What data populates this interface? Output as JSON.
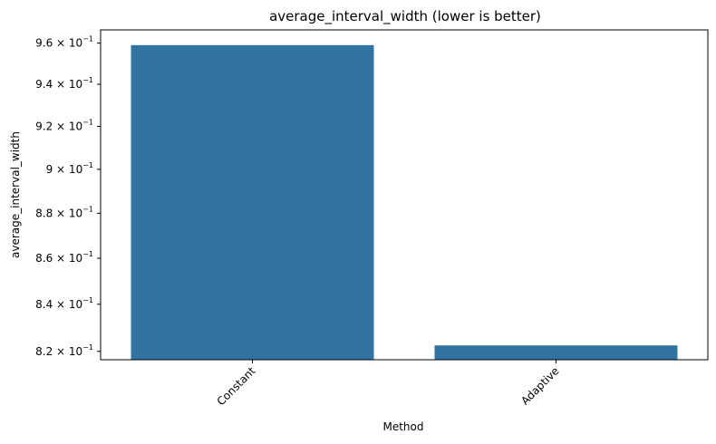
{
  "chart_data": {
    "type": "bar",
    "title": "average_interval_width (lower is better)",
    "xlabel": "Method",
    "ylabel": "average_interval_width",
    "categories": [
      "Constant",
      "Adaptive"
    ],
    "values": [
      0.959,
      0.8225
    ],
    "y_scale": "log",
    "ylim": [
      0.8165,
      0.9665
    ],
    "yticks": [
      {
        "value": 0.82,
        "mantissa": "8.2",
        "base": "10",
        "exponent": "−1"
      },
      {
        "value": 0.84,
        "mantissa": "8.4",
        "base": "10",
        "exponent": "−1"
      },
      {
        "value": 0.86,
        "mantissa": "8.6",
        "base": "10",
        "exponent": "−1"
      },
      {
        "value": 0.88,
        "mantissa": "8.8",
        "base": "10",
        "exponent": "−1"
      },
      {
        "value": 0.9,
        "mantissa": "9",
        "base": "10",
        "exponent": "−1"
      },
      {
        "value": 0.92,
        "mantissa": "9.2",
        "base": "10",
        "exponent": "−1"
      },
      {
        "value": 0.94,
        "mantissa": "9.4",
        "base": "10",
        "exponent": "−1"
      },
      {
        "value": 0.96,
        "mantissa": "9.6",
        "base": "10",
        "exponent": "−1"
      }
    ],
    "bar_color": "#3274a1",
    "grid": false,
    "xtick_rotation": 45
  }
}
